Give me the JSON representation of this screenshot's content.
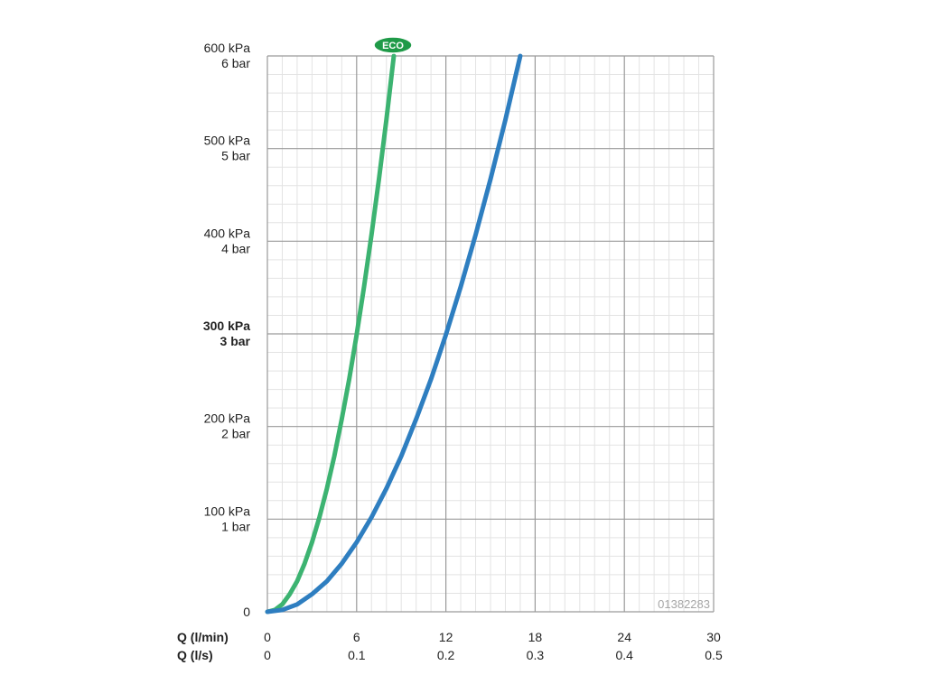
{
  "chart_data": {
    "type": "line",
    "title": "",
    "xlim": [
      0,
      30
    ],
    "ylim": [
      0,
      600
    ],
    "grid": true,
    "x_axis_rows": [
      {
        "title": "Q (l/min)",
        "ticks": [
          {
            "value": 0,
            "label": "0"
          },
          {
            "value": 6,
            "label": "6"
          },
          {
            "value": 12,
            "label": "12"
          },
          {
            "value": 18,
            "label": "18"
          },
          {
            "value": 24,
            "label": "24"
          },
          {
            "value": 30,
            "label": "30"
          }
        ]
      },
      {
        "title": "Q (l/s)",
        "ticks": [
          {
            "value": 0,
            "label": "0"
          },
          {
            "value": 6,
            "label": "0.1"
          },
          {
            "value": 12,
            "label": "0.2"
          },
          {
            "value": 18,
            "label": "0.3"
          },
          {
            "value": 24,
            "label": "0.4"
          },
          {
            "value": 30,
            "label": "0.5"
          }
        ]
      }
    ],
    "y_ticks": [
      {
        "value": 0,
        "kpa": "0",
        "bar": "",
        "bold": false
      },
      {
        "value": 100,
        "kpa": "100 kPa",
        "bar": "1 bar",
        "bold": false
      },
      {
        "value": 200,
        "kpa": "200 kPa",
        "bar": "2 bar",
        "bold": false
      },
      {
        "value": 300,
        "kpa": "300 kPa",
        "bar": "3 bar",
        "bold": true
      },
      {
        "value": 400,
        "kpa": "400 kPa",
        "bar": "4 bar",
        "bold": false
      },
      {
        "value": 500,
        "kpa": "500 kPa",
        "bar": "5 bar",
        "bold": false
      },
      {
        "value": 600,
        "kpa": "600 kPa",
        "bar": "6 bar",
        "bold": false
      }
    ],
    "series": [
      {
        "name": "ECO",
        "color": "#3cb371",
        "label_badge": true,
        "x": [
          0,
          0.5,
          1,
          1.5,
          2,
          2.5,
          3,
          3.5,
          4,
          4.5,
          5,
          5.5,
          6,
          6.5,
          7,
          7.5,
          8,
          8.5
        ],
        "y": [
          0,
          2,
          8,
          19,
          33,
          52,
          75,
          102,
          133,
          168,
          208,
          251,
          299,
          351,
          407,
          467,
          531,
          600
        ]
      },
      {
        "color": "#2e7ec0",
        "label_badge": false,
        "x": [
          0,
          1,
          2,
          3,
          4,
          5,
          6,
          7,
          8,
          9,
          10,
          11,
          12,
          13,
          14,
          15,
          16,
          17
        ],
        "y": [
          0,
          2,
          8,
          19,
          33,
          52,
          75,
          102,
          133,
          168,
          208,
          251,
          299,
          351,
          407,
          467,
          531,
          600
        ]
      }
    ],
    "annotations": [
      {
        "text": "01382283",
        "position": "bottom-right"
      }
    ]
  }
}
